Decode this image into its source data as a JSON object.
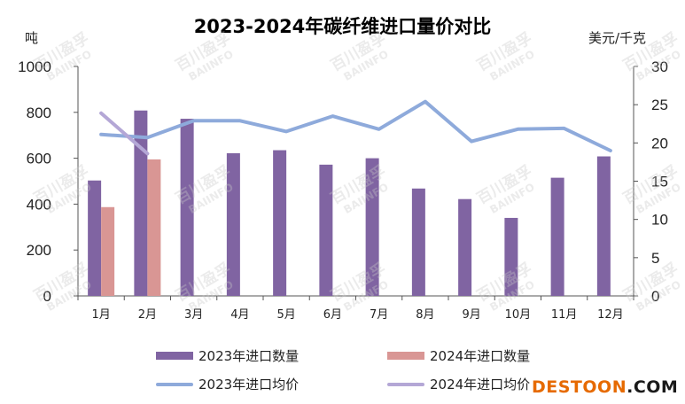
{
  "chart_data": {
    "type": "bar",
    "title": "2023-2024年碳纤维进口量价对比",
    "y_left_label": "吨",
    "y_right_label": "美元/千克",
    "categories": [
      "1月",
      "2月",
      "3月",
      "4月",
      "5月",
      "6月",
      "7月",
      "8月",
      "9月",
      "10月",
      "11月",
      "12月"
    ],
    "ylim_left": [
      0,
      1000
    ],
    "ylim_right": [
      0,
      30
    ],
    "yticks_left": [
      "0",
      "200",
      "400",
      "600",
      "800",
      "1000"
    ],
    "yticks_right": [
      "0",
      "5",
      "10",
      "15",
      "20",
      "25",
      "30"
    ],
    "series": [
      {
        "name": "2023年进口数量",
        "kind": "bar",
        "axis": "left",
        "values": [
          503,
          808,
          772,
          622,
          635,
          572,
          600,
          468,
          422,
          340,
          515,
          608
        ]
      },
      {
        "name": "2024年进口数量",
        "kind": "bar",
        "axis": "left",
        "values": [
          387,
          595,
          null,
          null,
          null,
          null,
          null,
          null,
          null,
          null,
          null,
          null
        ]
      },
      {
        "name": "2023年进口均价",
        "kind": "line",
        "axis": "right",
        "values": [
          21.1,
          20.7,
          22.9,
          22.9,
          21.5,
          23.5,
          21.8,
          25.4,
          20.2,
          21.8,
          21.9,
          19.0
        ]
      },
      {
        "name": "2024年进口均价",
        "kind": "line",
        "axis": "right",
        "values": [
          23.9,
          18.6,
          null,
          null,
          null,
          null,
          null,
          null,
          null,
          null,
          null,
          null
        ]
      }
    ],
    "colors": {
      "bar2023": "#8064a2",
      "bar2024": "#d99694",
      "line2023": "#8eaadb",
      "line2024": "#b4a7d6",
      "axis": "#555555"
    },
    "legend_position": "bottom",
    "grid": false
  },
  "watermark": {
    "name": "百川盈孚",
    "sub": "BAIINFO"
  },
  "brand": {
    "part1": "DESTOON",
    "part2": ".COM"
  }
}
